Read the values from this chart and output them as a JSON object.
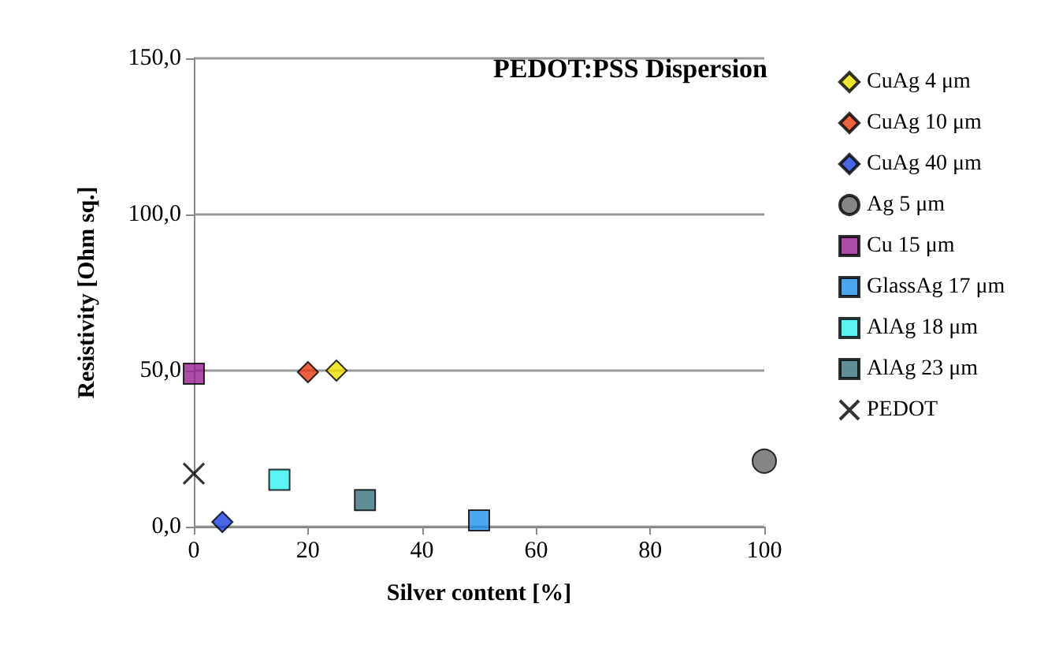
{
  "chart_data": {
    "type": "scatter",
    "title": "PEDOT:PSS Dispersion",
    "xlabel": "Silver content [%]",
    "ylabel": "Resistivity [Ohm sq.]",
    "xlim": [
      0,
      100
    ],
    "xticks": [
      0,
      20,
      40,
      60,
      80,
      100
    ],
    "ylim": [
      0,
      150
    ],
    "yticks": [
      {
        "value": 0,
        "label": "0,0"
      },
      {
        "value": 50,
        "label": "50,0"
      },
      {
        "value": 100,
        "label": "100,0"
      },
      {
        "value": 150,
        "label": "150,0"
      }
    ],
    "grid": "y",
    "legend": "right",
    "series": [
      {
        "name": "CuAg 4 μm",
        "color": "#f0e000",
        "marker": "diamond",
        "x": [
          25
        ],
        "values": [
          50
        ]
      },
      {
        "name": "CuAg 10 μm",
        "color": "#e83a10",
        "marker": "diamond",
        "x": [
          20
        ],
        "values": [
          49.5
        ]
      },
      {
        "name": "CuAg 40 μm",
        "color": "#1a3ee0",
        "marker": "diamond",
        "x": [
          5
        ],
        "values": [
          1.5
        ]
      },
      {
        "name": "Ag 5 μm",
        "color": "#666666",
        "marker": "circle",
        "x": [
          100
        ],
        "values": [
          21
        ]
      },
      {
        "name": "Cu 15 μm",
        "color": "#962090",
        "marker": "square",
        "x": [
          0
        ],
        "values": [
          49
        ]
      },
      {
        "name": "GlassAg 17 μm",
        "color": "#1e90e8",
        "marker": "square",
        "x": [
          50
        ],
        "values": [
          2
        ]
      },
      {
        "name": "AlAg 18 μm",
        "color": "#30f0f0",
        "marker": "square",
        "x": [
          15
        ],
        "values": [
          15
        ]
      },
      {
        "name": "AlAg 23 μm",
        "color": "#3a7080",
        "marker": "square",
        "x": [
          30
        ],
        "values": [
          8.5
        ]
      },
      {
        "name": "PEDOT",
        "color": "#000000",
        "marker": "cross",
        "x": [
          0
        ],
        "values": [
          17
        ]
      }
    ]
  }
}
